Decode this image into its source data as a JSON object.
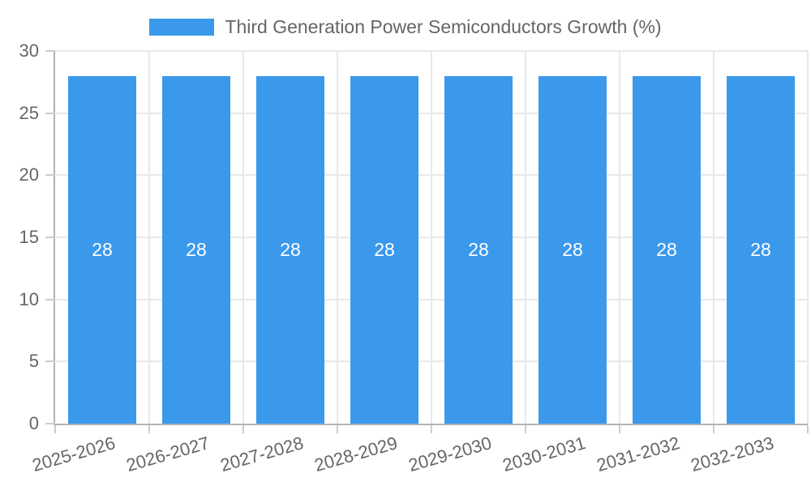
{
  "chart_data": {
    "type": "bar",
    "title": "",
    "legend": "Third Generation Power Semiconductors Growth (%)",
    "legend_position": "top",
    "categories": [
      "2025-2026",
      "2026-2027",
      "2027-2028",
      "2028-2029",
      "2029-2030",
      "2030-2031",
      "2031-2032",
      "2032-2033"
    ],
    "values": [
      28,
      28,
      28,
      28,
      28,
      28,
      28,
      28
    ],
    "bar_value_labels": [
      "28",
      "28",
      "28",
      "28",
      "28",
      "28",
      "28",
      "28"
    ],
    "xlabel": "",
    "ylabel": "",
    "ylim": [
      0,
      30
    ],
    "yticks": [
      0,
      5,
      10,
      15,
      20,
      25,
      30
    ],
    "grid": "on",
    "colors": {
      "bar": "#3B99EC",
      "bar_label_text": "#FFFFFF",
      "axis_text": "#666666",
      "legend_text": "#666666",
      "gridline": "#E9E9E9",
      "axis_line": "#B3B3B3",
      "tick_mark": "#CDCDCD",
      "background": "#FFFFFF"
    }
  }
}
